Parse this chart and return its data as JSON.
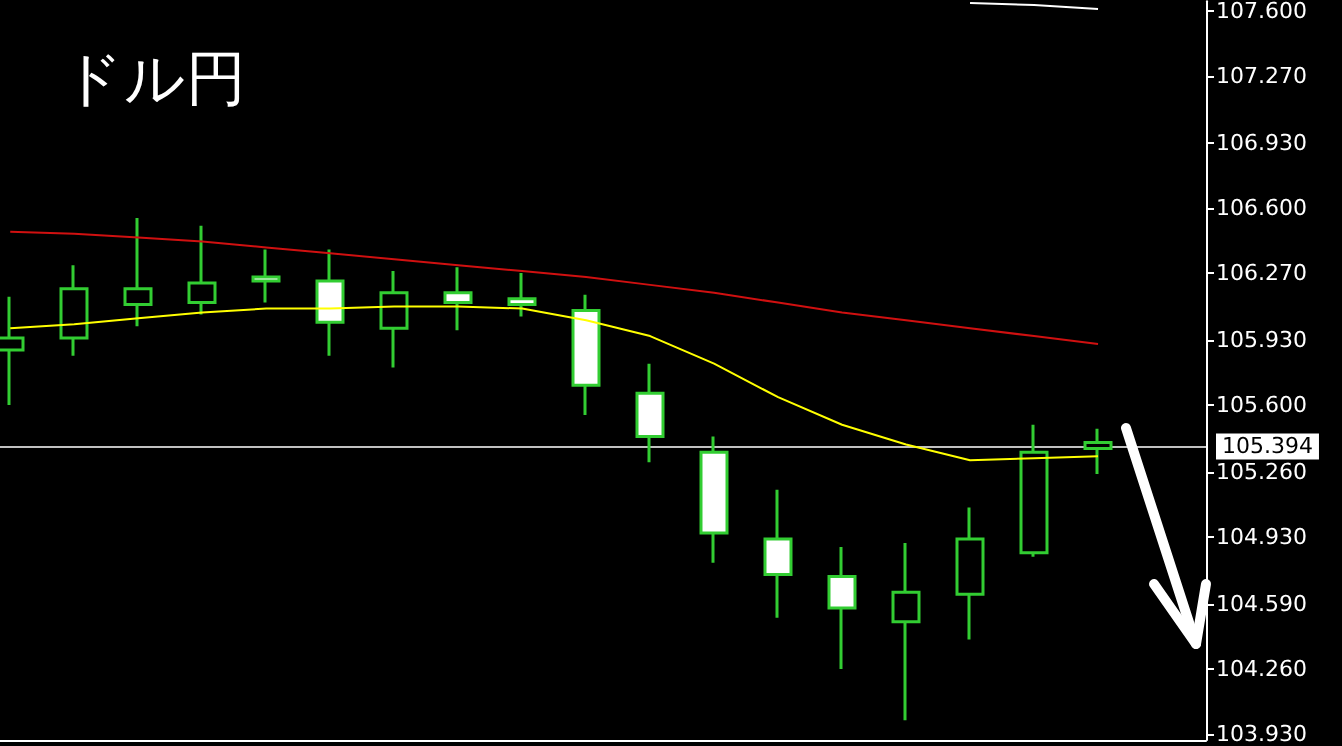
{
  "chart_data": {
    "type": "candlestick",
    "title": "ドル円",
    "categories": [
      null,
      null,
      null,
      null,
      null,
      null,
      null,
      null,
      null,
      null,
      null,
      null,
      null,
      null,
      null,
      null,
      null,
      null
    ],
    "ohlc": [
      [
        105.88,
        106.15,
        105.6,
        105.94
      ],
      [
        105.94,
        106.31,
        105.85,
        106.19
      ],
      [
        106.11,
        106.55,
        106.0,
        106.19
      ],
      [
        106.12,
        106.51,
        106.06,
        106.22
      ],
      [
        106.25,
        106.39,
        106.12,
        106.23
      ],
      [
        106.23,
        106.39,
        105.85,
        106.02
      ],
      [
        105.99,
        106.28,
        105.79,
        106.17
      ],
      [
        106.17,
        106.3,
        105.98,
        106.12
      ],
      [
        106.14,
        106.27,
        106.05,
        106.11
      ],
      [
        106.08,
        106.16,
        105.55,
        105.7
      ],
      [
        105.66,
        105.81,
        105.31,
        105.44
      ],
      [
        105.36,
        105.44,
        104.8,
        104.95
      ],
      [
        104.92,
        105.17,
        104.52,
        104.74
      ],
      [
        104.73,
        104.88,
        104.26,
        104.57
      ],
      [
        104.5,
        104.9,
        104.0,
        104.65
      ],
      [
        104.64,
        105.08,
        104.41,
        104.92
      ],
      [
        104.85,
        105.5,
        104.83,
        105.36
      ],
      [
        105.38,
        105.48,
        105.25,
        105.41
      ]
    ],
    "color": "#32cd32",
    "series": [
      {
        "type": "line",
        "color": "#ffff00",
        "values": [
          105.99,
          106.01,
          106.04,
          106.07,
          106.09,
          106.09,
          106.1,
          106.1,
          106.09,
          106.03,
          105.95,
          105.81,
          105.64,
          105.5,
          105.4,
          105.32,
          105.33,
          105.34
        ]
      },
      {
        "type": "line",
        "color": "#d01010",
        "values": [
          106.48,
          106.47,
          106.45,
          106.43,
          106.4,
          106.37,
          106.34,
          106.31,
          106.28,
          106.25,
          106.21,
          106.17,
          106.12,
          106.07,
          106.03,
          105.99,
          105.95,
          105.91
        ]
      },
      {
        "type": "line",
        "color": "#ffffff",
        "values": [
          null,
          null,
          null,
          null,
          null,
          null,
          null,
          null,
          null,
          null,
          null,
          null,
          null,
          null,
          null,
          107.64,
          107.63,
          107.61
        ]
      }
    ],
    "ylim": [
      103.9,
      107.65
    ],
    "yticks": [
      {
        "value": 103.93,
        "label": "103.930"
      },
      {
        "value": 104.26,
        "label": "104.260"
      },
      {
        "value": 104.59,
        "label": "104.590"
      },
      {
        "value": 104.93,
        "label": "104.930"
      },
      {
        "value": 105.26,
        "label": "105.260"
      },
      {
        "value": 105.6,
        "label": "105.600"
      },
      {
        "value": 105.93,
        "label": "105.930"
      },
      {
        "value": 106.27,
        "label": "106.270"
      },
      {
        "value": 106.6,
        "label": "106.600"
      },
      {
        "value": 106.93,
        "label": "106.930"
      },
      {
        "value": 107.27,
        "label": "107.270"
      },
      {
        "value": 107.6,
        "label": "107.600"
      }
    ],
    "ref_lines": [
      {
        "axis": "y",
        "value": 105.394,
        "label": "105.394",
        "color": "#c0c0c0"
      }
    ],
    "tick_labels": "y",
    "grid": false,
    "marker": "none"
  }
}
